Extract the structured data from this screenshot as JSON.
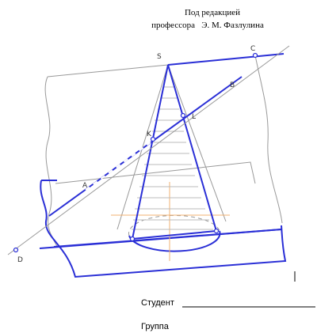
{
  "header": {
    "line1": "Под редакцией",
    "line2": "профессора   Э. М. Фазлулина"
  },
  "diagram": {
    "points": [
      "S",
      "C",
      "B",
      "L",
      "K",
      "A",
      "D"
    ]
  },
  "form": {
    "student": "Студент",
    "group": "Группа"
  }
}
